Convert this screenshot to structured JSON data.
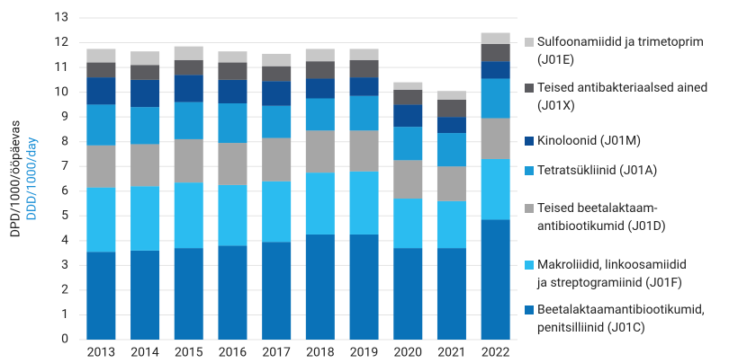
{
  "chart_data": {
    "type": "stacked_bar",
    "ylabel": "DPD/1000/ööpäevas",
    "ylabel2": "DDD/1000/day",
    "categories": [
      "2013",
      "2014",
      "2015",
      "2016",
      "2017",
      "2018",
      "2019",
      "2020",
      "2021",
      "2022"
    ],
    "series": [
      {
        "name": "Beetalaktaamantibiootikumid,\npenitsilliinid (J01C)",
        "color": "#0a72b8",
        "values": [
          3.55,
          3.6,
          3.7,
          3.8,
          3.95,
          4.25,
          4.25,
          3.7,
          3.7,
          4.85
        ]
      },
      {
        "name": "Makroliidid, linkoosamiidid\nja streptogramiinid (J01F)",
        "color": "#2bbcf0",
        "values": [
          2.6,
          2.6,
          2.65,
          2.45,
          2.45,
          2.5,
          2.55,
          2.0,
          1.9,
          2.45
        ]
      },
      {
        "name": "Teised beetalaktaam-\nantibiootikumid (J01D)",
        "color": "#a6a6a6",
        "values": [
          1.7,
          1.7,
          1.75,
          1.7,
          1.75,
          1.7,
          1.65,
          1.55,
          1.4,
          1.65
        ]
      },
      {
        "name": "Tetratsükliinid (J01A)",
        "color": "#1a9ad6",
        "values": [
          1.65,
          1.5,
          1.5,
          1.6,
          1.3,
          1.3,
          1.4,
          1.35,
          1.35,
          1.6
        ]
      },
      {
        "name": "Kinoloonid (J01M)",
        "color": "#0c4d94",
        "values": [
          1.1,
          1.1,
          1.1,
          0.95,
          1.0,
          0.8,
          0.75,
          0.9,
          0.65,
          0.7
        ]
      },
      {
        "name": "Teised antibakteriaalsed ained\n(J01X)",
        "color": "#5b5b5f",
        "values": [
          0.6,
          0.6,
          0.6,
          0.7,
          0.6,
          0.7,
          0.7,
          0.6,
          0.7,
          0.7
        ]
      },
      {
        "name": "Sulfoonamiidid ja trimetoprim\n(J01E)",
        "color": "#c8c8c8",
        "values": [
          0.55,
          0.55,
          0.55,
          0.45,
          0.5,
          0.5,
          0.45,
          0.3,
          0.35,
          0.45
        ]
      }
    ],
    "ylim": [
      0,
      13
    ],
    "yticks": [
      0,
      1,
      2,
      3,
      4,
      5,
      6,
      7,
      8,
      9,
      10,
      11,
      12,
      13
    ],
    "grid": true,
    "legend": "right"
  }
}
